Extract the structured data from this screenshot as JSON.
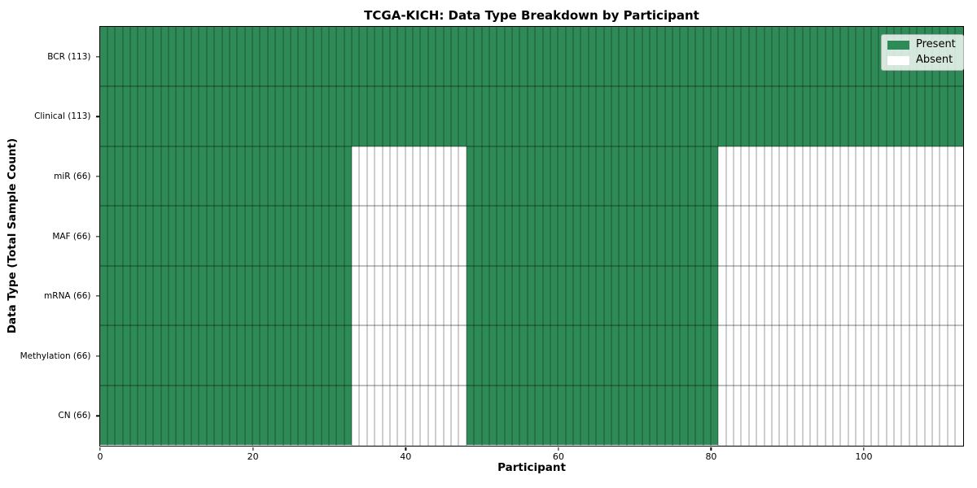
{
  "chart_data": {
    "type": "heatmap",
    "title": "TCGA-KICH: Data Type Breakdown by Participant",
    "xlabel": "Participant",
    "ylabel": "Data Type (Total Sample Count)",
    "n_participants": 113,
    "x_max": 113,
    "x_ticks": [
      0,
      20,
      40,
      60,
      80,
      100
    ],
    "colors": {
      "present": "#2E8B57",
      "absent": "#FFFFFF"
    },
    "legend": [
      {
        "label": "Present",
        "state": "present"
      },
      {
        "label": "Absent",
        "state": "absent"
      }
    ],
    "rows": [
      {
        "label": "BCR (113)",
        "total": 113,
        "segments": [
          {
            "start": 0,
            "end": 113,
            "state": "present"
          }
        ]
      },
      {
        "label": "Clinical (113)",
        "total": 113,
        "segments": [
          {
            "start": 0,
            "end": 113,
            "state": "present"
          }
        ]
      },
      {
        "label": "miR (66)",
        "total": 66,
        "segments": [
          {
            "start": 0,
            "end": 33,
            "state": "present"
          },
          {
            "start": 33,
            "end": 48,
            "state": "absent"
          },
          {
            "start": 48,
            "end": 81,
            "state": "present"
          },
          {
            "start": 81,
            "end": 113,
            "state": "absent"
          }
        ]
      },
      {
        "label": "MAF (66)",
        "total": 66,
        "segments": [
          {
            "start": 0,
            "end": 33,
            "state": "present"
          },
          {
            "start": 33,
            "end": 48,
            "state": "absent"
          },
          {
            "start": 48,
            "end": 81,
            "state": "present"
          },
          {
            "start": 81,
            "end": 113,
            "state": "absent"
          }
        ]
      },
      {
        "label": "mRNA (66)",
        "total": 66,
        "segments": [
          {
            "start": 0,
            "end": 33,
            "state": "present"
          },
          {
            "start": 33,
            "end": 48,
            "state": "absent"
          },
          {
            "start": 48,
            "end": 81,
            "state": "present"
          },
          {
            "start": 81,
            "end": 113,
            "state": "absent"
          }
        ]
      },
      {
        "label": "Methylation (66)",
        "total": 66,
        "segments": [
          {
            "start": 0,
            "end": 33,
            "state": "present"
          },
          {
            "start": 33,
            "end": 48,
            "state": "absent"
          },
          {
            "start": 48,
            "end": 81,
            "state": "present"
          },
          {
            "start": 81,
            "end": 113,
            "state": "absent"
          }
        ]
      },
      {
        "label": "CN (66)",
        "total": 66,
        "segments": [
          {
            "start": 0,
            "end": 33,
            "state": "present"
          },
          {
            "start": 33,
            "end": 48,
            "state": "absent"
          },
          {
            "start": 48,
            "end": 81,
            "state": "present"
          },
          {
            "start": 81,
            "end": 113,
            "state": "absent"
          }
        ]
      }
    ]
  }
}
